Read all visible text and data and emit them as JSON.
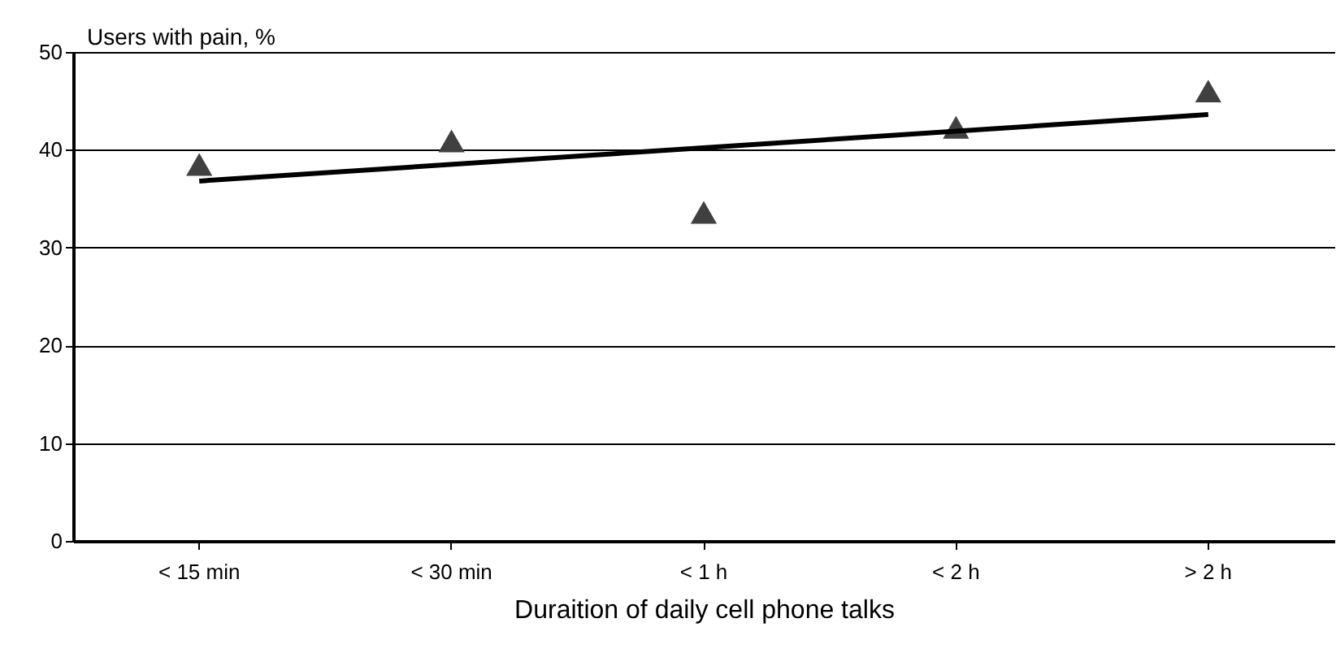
{
  "chart_data": {
    "type": "scatter",
    "xlabel": "Duraition of daily cell phone talks",
    "ylabel": "Users with pain, %",
    "categories": [
      "< 15 min",
      "< 30 min",
      "< 1 h",
      "< 2 h",
      "> 2 h"
    ],
    "series": [
      {
        "color": "#404040",
        "marker": "triangle",
        "values": [
          38.5,
          40.9,
          33.6,
          42.3,
          46
        ]
      },
      {
        "type": "line",
        "color": "#000000",
        "line_style": "solid",
        "x": [
          "< 15 min",
          "> 2 h"
        ],
        "values": [
          36.8,
          43.6
        ]
      }
    ],
    "ylim": [
      0,
      50
    ],
    "yticks": [
      0,
      10,
      20,
      30,
      40,
      50
    ],
    "grid": "y"
  }
}
